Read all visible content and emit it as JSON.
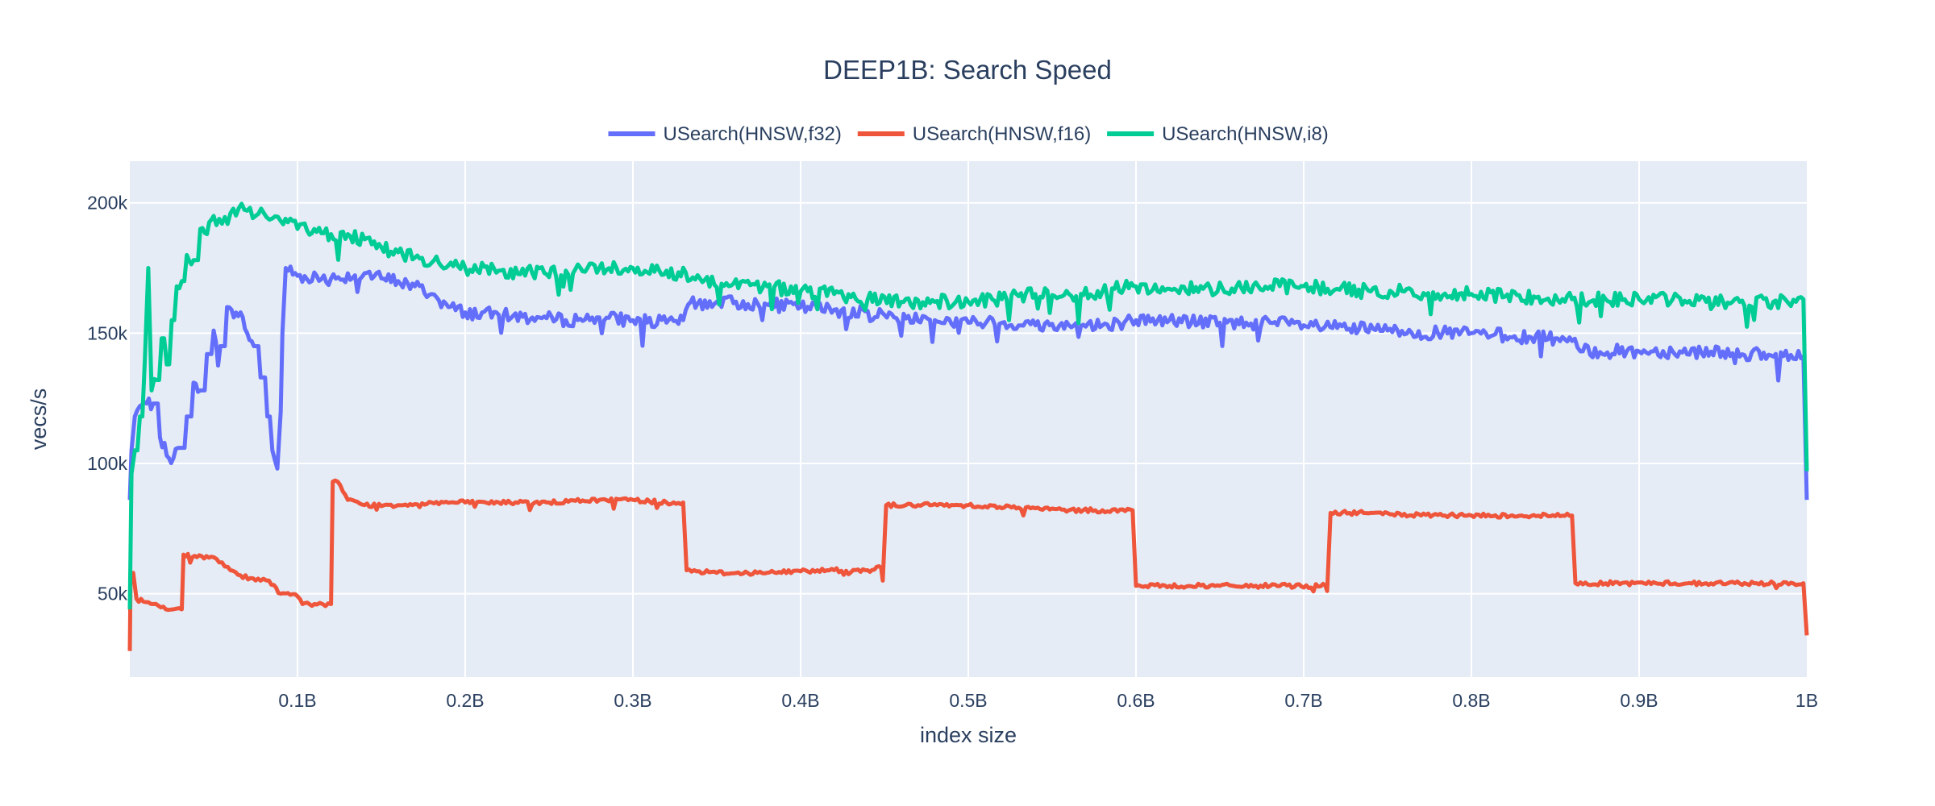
{
  "chart_data": {
    "type": "line",
    "title": "DEEP1B: Search Speed",
    "xlabel": "index size",
    "ylabel": "vecs/s",
    "xlim": [
      0,
      1000000000
    ],
    "ylim": [
      18000,
      216000
    ],
    "x_ticks": [
      {
        "value": 100000000,
        "label": "0.1B"
      },
      {
        "value": 200000000,
        "label": "0.2B"
      },
      {
        "value": 300000000,
        "label": "0.3B"
      },
      {
        "value": 400000000,
        "label": "0.4B"
      },
      {
        "value": 500000000,
        "label": "0.5B"
      },
      {
        "value": 600000000,
        "label": "0.6B"
      },
      {
        "value": 700000000,
        "label": "0.7B"
      },
      {
        "value": 800000000,
        "label": "0.8B"
      },
      {
        "value": 900000000,
        "label": "0.9B"
      },
      {
        "value": 1000000000,
        "label": "1B"
      }
    ],
    "y_ticks": [
      {
        "value": 50000,
        "label": "50k"
      },
      {
        "value": 100000,
        "label": "100k"
      },
      {
        "value": 150000,
        "label": "150k"
      },
      {
        "value": 200000,
        "label": "200k"
      }
    ],
    "grid": true,
    "legend_position": "top-center",
    "background": "#e5ecf6",
    "series": [
      {
        "name": "USearch(HNSW,f32)",
        "color": "#636efa",
        "points": [
          [
            0,
            86000
          ],
          [
            1000000,
            105000
          ],
          [
            3000000,
            118000
          ],
          [
            6000000,
            122000
          ],
          [
            10000000,
            123000
          ],
          [
            14000000,
            123000
          ],
          [
            18000000,
            110000
          ],
          [
            22000000,
            103000
          ],
          [
            26000000,
            102000
          ],
          [
            30000000,
            106000
          ],
          [
            34000000,
            118000
          ],
          [
            38000000,
            131000
          ],
          [
            42000000,
            128000
          ],
          [
            46000000,
            142000
          ],
          [
            50000000,
            151000
          ],
          [
            54000000,
            145000
          ],
          [
            58000000,
            160000
          ],
          [
            62000000,
            156000
          ],
          [
            66000000,
            158000
          ],
          [
            70000000,
            150000
          ],
          [
            74000000,
            145000
          ],
          [
            78000000,
            133000
          ],
          [
            82000000,
            118000
          ],
          [
            85000000,
            105000
          ],
          [
            88000000,
            98000
          ],
          [
            90000000,
            120000
          ],
          [
            91000000,
            150000
          ],
          [
            93000000,
            175000
          ],
          [
            100000000,
            172000
          ],
          [
            120000000,
            171000
          ],
          [
            140000000,
            173000
          ],
          [
            150000000,
            171000
          ],
          [
            160000000,
            170000
          ],
          [
            170000000,
            168000
          ],
          [
            180000000,
            165000
          ],
          [
            190000000,
            160000
          ],
          [
            200000000,
            158000
          ],
          [
            220000000,
            157000
          ],
          [
            240000000,
            156000
          ],
          [
            260000000,
            155000
          ],
          [
            280000000,
            156000
          ],
          [
            300000000,
            155000
          ],
          [
            320000000,
            154000
          ],
          [
            330000000,
            155000
          ],
          [
            333000000,
            161000
          ],
          [
            350000000,
            162000
          ],
          [
            380000000,
            161000
          ],
          [
            400000000,
            160000
          ],
          [
            420000000,
            159000
          ],
          [
            450000000,
            157000
          ],
          [
            480000000,
            155000
          ],
          [
            500000000,
            154000
          ],
          [
            520000000,
            154000
          ],
          [
            540000000,
            153000
          ],
          [
            560000000,
            153000
          ],
          [
            580000000,
            153000
          ],
          [
            600000000,
            155000
          ],
          [
            620000000,
            155000
          ],
          [
            650000000,
            154000
          ],
          [
            680000000,
            154000
          ],
          [
            700000000,
            153000
          ],
          [
            720000000,
            152000
          ],
          [
            750000000,
            151000
          ],
          [
            780000000,
            150000
          ],
          [
            800000000,
            150000
          ],
          [
            820000000,
            149000
          ],
          [
            850000000,
            148000
          ],
          [
            860000000,
            147000
          ],
          [
            865000000,
            143000
          ],
          [
            900000000,
            143000
          ],
          [
            920000000,
            143000
          ],
          [
            950000000,
            143000
          ],
          [
            980000000,
            141000
          ],
          [
            998000000,
            141000
          ],
          [
            1000000000,
            86000
          ]
        ]
      },
      {
        "name": "USearch(HNSW,f16)",
        "color": "#ef553b",
        "points": [
          [
            0,
            28000
          ],
          [
            500000,
            58000
          ],
          [
            2000000,
            58000
          ],
          [
            4000000,
            48000
          ],
          [
            8000000,
            47000
          ],
          [
            14000000,
            46000
          ],
          [
            20000000,
            45000
          ],
          [
            26000000,
            44000
          ],
          [
            31000000,
            44000
          ],
          [
            32000000,
            65000
          ],
          [
            40000000,
            64000
          ],
          [
            50000000,
            64000
          ],
          [
            55000000,
            62000
          ],
          [
            60000000,
            59000
          ],
          [
            66000000,
            57000
          ],
          [
            72000000,
            56000
          ],
          [
            78000000,
            55000
          ],
          [
            83000000,
            55000
          ],
          [
            90000000,
            50000
          ],
          [
            100000000,
            49000
          ],
          [
            103000000,
            46000
          ],
          [
            110000000,
            46000
          ],
          [
            115000000,
            46000
          ],
          [
            120000000,
            46000
          ],
          [
            121000000,
            93000
          ],
          [
            124000000,
            93000
          ],
          [
            130000000,
            86000
          ],
          [
            140000000,
            84000
          ],
          [
            160000000,
            84000
          ],
          [
            180000000,
            85000
          ],
          [
            200000000,
            85000
          ],
          [
            220000000,
            85000
          ],
          [
            250000000,
            85000
          ],
          [
            280000000,
            86000
          ],
          [
            300000000,
            86000
          ],
          [
            320000000,
            85000
          ],
          [
            330000000,
            85000
          ],
          [
            332000000,
            59000
          ],
          [
            350000000,
            58000
          ],
          [
            380000000,
            58000
          ],
          [
            410000000,
            59000
          ],
          [
            440000000,
            59000
          ],
          [
            448000000,
            60000
          ],
          [
            449000000,
            55000
          ],
          [
            451000000,
            84000
          ],
          [
            470000000,
            84000
          ],
          [
            500000000,
            84000
          ],
          [
            530000000,
            83000
          ],
          [
            560000000,
            82000
          ],
          [
            580000000,
            82000
          ],
          [
            598000000,
            82000
          ],
          [
            600000000,
            53000
          ],
          [
            620000000,
            53000
          ],
          [
            650000000,
            53000
          ],
          [
            680000000,
            53000
          ],
          [
            713000000,
            53000
          ],
          [
            714000000,
            51000
          ],
          [
            716000000,
            81000
          ],
          [
            740000000,
            81000
          ],
          [
            770000000,
            80000
          ],
          [
            800000000,
            80000
          ],
          [
            830000000,
            80000
          ],
          [
            860000000,
            80000
          ],
          [
            862000000,
            54000
          ],
          [
            880000000,
            54000
          ],
          [
            910000000,
            54000
          ],
          [
            940000000,
            54000
          ],
          [
            970000000,
            54000
          ],
          [
            998000000,
            54000
          ],
          [
            1000000000,
            34000
          ]
        ]
      },
      {
        "name": "USearch(HNSW,i8)",
        "color": "#00cc96",
        "points": [
          [
            0,
            44000
          ],
          [
            1000000,
            96000
          ],
          [
            3000000,
            105000
          ],
          [
            6000000,
            118000
          ],
          [
            9000000,
            140000
          ],
          [
            11000000,
            175000
          ],
          [
            13000000,
            128000
          ],
          [
            16000000,
            132000
          ],
          [
            19000000,
            148000
          ],
          [
            22000000,
            138000
          ],
          [
            25000000,
            155000
          ],
          [
            28000000,
            168000
          ],
          [
            31000000,
            170000
          ],
          [
            34000000,
            180000
          ],
          [
            38000000,
            178000
          ],
          [
            42000000,
            190000
          ],
          [
            46000000,
            188000
          ],
          [
            50000000,
            195000
          ],
          [
            55000000,
            192000
          ],
          [
            60000000,
            196000
          ],
          [
            65000000,
            198000
          ],
          [
            70000000,
            197000
          ],
          [
            75000000,
            195000
          ],
          [
            80000000,
            196000
          ],
          [
            85000000,
            194000
          ],
          [
            90000000,
            193000
          ],
          [
            100000000,
            190000
          ],
          [
            110000000,
            190000
          ],
          [
            120000000,
            188000
          ],
          [
            130000000,
            188000
          ],
          [
            140000000,
            186000
          ],
          [
            150000000,
            183000
          ],
          [
            160000000,
            181000
          ],
          [
            170000000,
            179000
          ],
          [
            180000000,
            177000
          ],
          [
            190000000,
            176000
          ],
          [
            200000000,
            175000
          ],
          [
            220000000,
            174000
          ],
          [
            240000000,
            173000
          ],
          [
            260000000,
            174000
          ],
          [
            280000000,
            175000
          ],
          [
            300000000,
            175000
          ],
          [
            320000000,
            174000
          ],
          [
            340000000,
            171000
          ],
          [
            360000000,
            169000
          ],
          [
            380000000,
            168000
          ],
          [
            400000000,
            166000
          ],
          [
            420000000,
            165000
          ],
          [
            440000000,
            163000
          ],
          [
            460000000,
            162000
          ],
          [
            480000000,
            162000
          ],
          [
            500000000,
            162000
          ],
          [
            520000000,
            163000
          ],
          [
            540000000,
            165000
          ],
          [
            560000000,
            165000
          ],
          [
            580000000,
            166000
          ],
          [
            600000000,
            168000
          ],
          [
            620000000,
            167000
          ],
          [
            640000000,
            167000
          ],
          [
            660000000,
            168000
          ],
          [
            680000000,
            168000
          ],
          [
            700000000,
            168000
          ],
          [
            720000000,
            167000
          ],
          [
            740000000,
            166000
          ],
          [
            760000000,
            166000
          ],
          [
            780000000,
            165000
          ],
          [
            800000000,
            165000
          ],
          [
            820000000,
            164000
          ],
          [
            840000000,
            164000
          ],
          [
            860000000,
            163000
          ],
          [
            880000000,
            163000
          ],
          [
            900000000,
            163000
          ],
          [
            920000000,
            163000
          ],
          [
            940000000,
            162000
          ],
          [
            960000000,
            162000
          ],
          [
            980000000,
            162000
          ],
          [
            998000000,
            163000
          ],
          [
            1000000000,
            97000
          ]
        ]
      }
    ]
  }
}
